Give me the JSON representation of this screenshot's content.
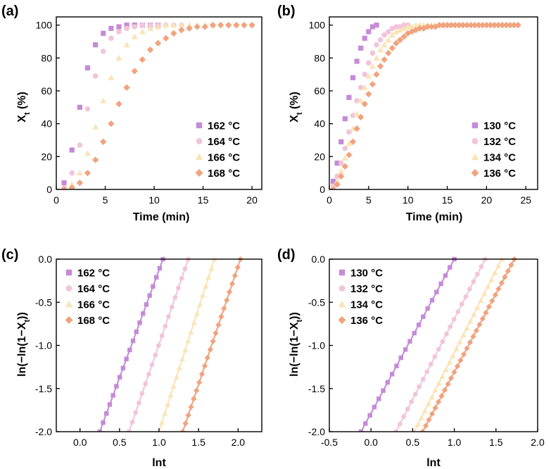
{
  "figure": {
    "colors": {
      "s1": "#c58ad8",
      "s2": "#f2c4d9",
      "s3": "#fbe3b5",
      "s4": "#f0a37e"
    }
  },
  "chart_data": [
    {
      "type": "scatter",
      "panel_label": "(a)",
      "xlabel": "Time (min)",
      "ylabel": "X_t (%)",
      "xlim": [
        0,
        21
      ],
      "ylim": [
        0,
        105
      ],
      "xticks": [
        0,
        5,
        10,
        15,
        20
      ],
      "yticks": [
        0,
        20,
        40,
        60,
        80,
        100
      ],
      "grid": false,
      "legend_position": "bottom-right",
      "series": [
        {
          "name": "162 °C",
          "marker": "square",
          "color": "#c58ad8",
          "x": [
            0.8,
            1.6,
            2.4,
            3.2,
            4.0,
            4.8,
            5.6,
            6.4,
            7.2,
            8.0,
            8.8,
            9.6,
            10.4
          ],
          "y": [
            4,
            24,
            50,
            74,
            88,
            95,
            98,
            99,
            100,
            100,
            100,
            100,
            100
          ]
        },
        {
          "name": "164 °C",
          "marker": "circle",
          "color": "#f2c4d9",
          "x": [
            0.8,
            1.6,
            2.4,
            3.2,
            4.0,
            4.8,
            5.6,
            6.4,
            7.2,
            8.0,
            8.8,
            9.6,
            10.4,
            11.2,
            12.0,
            12.8
          ],
          "y": [
            1,
            10,
            27,
            49,
            69,
            84,
            92,
            96,
            98,
            99,
            100,
            100,
            100,
            100,
            100,
            100
          ]
        },
        {
          "name": "166 °C",
          "marker": "triangle",
          "color": "#fbe3b5",
          "x": [
            0.8,
            1.6,
            2.4,
            3.2,
            4.0,
            4.8,
            5.6,
            6.4,
            7.2,
            8.0,
            8.8,
            9.6,
            10.4,
            11.2,
            12.0,
            12.8,
            13.6,
            14.4,
            15.2,
            16.0
          ],
          "y": [
            0,
            3,
            10,
            22,
            38,
            54,
            68,
            80,
            88,
            93,
            96,
            98,
            99,
            100,
            100,
            100,
            100,
            100,
            100,
            100
          ]
        },
        {
          "name": "168 °C",
          "marker": "diamond",
          "color": "#f0a37e",
          "x": [
            0.8,
            1.6,
            2.4,
            3.2,
            4.0,
            4.8,
            5.6,
            6.4,
            7.2,
            8.0,
            8.8,
            9.6,
            10.4,
            11.2,
            12.0,
            12.8,
            13.6,
            14.4,
            15.2,
            16.0,
            16.8,
            17.6,
            18.4,
            19.2,
            20.0
          ],
          "y": [
            0,
            1,
            4,
            10,
            18,
            29,
            40,
            52,
            62,
            72,
            79,
            85,
            89,
            92,
            95,
            97,
            98,
            99,
            99,
            100,
            100,
            100,
            100,
            100,
            100
          ]
        }
      ]
    },
    {
      "type": "scatter",
      "panel_label": "(b)",
      "xlabel": "Time (min)",
      "ylabel": "X_t (%)",
      "xlim": [
        0,
        26.5
      ],
      "ylim": [
        0,
        105
      ],
      "xticks": [
        0,
        5,
        10,
        15,
        20,
        25
      ],
      "yticks": [
        0,
        20,
        40,
        60,
        80,
        100
      ],
      "grid": false,
      "legend_position": "bottom-right",
      "series": [
        {
          "name": "130 °C",
          "marker": "square",
          "color": "#c58ad8",
          "x": [
            0.5,
            1.0,
            1.5,
            2.0,
            2.5,
            3.0,
            3.5,
            4.0,
            4.5,
            5.0,
            5.5,
            6.0
          ],
          "y": [
            5,
            16,
            29,
            43,
            56,
            68,
            78,
            86,
            92,
            96,
            99,
            100
          ]
        },
        {
          "name": "132 °C",
          "marker": "circle",
          "color": "#f2c4d9",
          "x": [
            0.5,
            1.0,
            1.5,
            2.0,
            2.5,
            3.0,
            3.5,
            4.0,
            4.5,
            5.0,
            5.5,
            6.0,
            6.5,
            7.0,
            7.5,
            8.0,
            8.5,
            9.0,
            9.5,
            10.0
          ],
          "y": [
            2,
            8,
            16,
            25,
            35,
            45,
            54,
            62,
            70,
            77,
            83,
            88,
            91,
            94,
            96,
            98,
            99,
            99,
            100,
            100
          ]
        },
        {
          "name": "134 °C",
          "marker": "triangle",
          "color": "#fbe3b5",
          "x": [
            0.5,
            1.0,
            1.5,
            2.0,
            2.5,
            3.0,
            3.5,
            4.0,
            4.5,
            5.0,
            5.5,
            6.0,
            6.5,
            7.0,
            7.5,
            8.0,
            8.5,
            9.0,
            9.5,
            10.0,
            10.5,
            11.0,
            11.5,
            12.0,
            12.5,
            13.0,
            13.5,
            14.0,
            14.5,
            15.0
          ],
          "y": [
            1,
            5,
            11,
            19,
            28,
            37,
            46,
            54,
            62,
            69,
            75,
            80,
            85,
            88,
            91,
            94,
            96,
            97,
            98,
            99,
            99,
            100,
            100,
            100,
            100,
            100,
            100,
            100,
            100,
            100
          ]
        },
        {
          "name": "136 °C",
          "marker": "diamond",
          "color": "#f0a37e",
          "x": [
            0.5,
            1.0,
            1.5,
            2.0,
            2.5,
            3.0,
            3.5,
            4.0,
            4.5,
            5.0,
            5.5,
            6.0,
            6.5,
            7.0,
            7.5,
            8.0,
            8.5,
            9.0,
            9.5,
            10.0,
            10.5,
            11.0,
            11.5,
            12.0,
            12.5,
            13.0,
            13.5,
            14.0,
            14.5,
            15.0,
            15.5,
            16.0,
            16.5,
            17.0,
            17.5,
            18.0,
            18.5,
            19.0,
            19.5,
            20.0,
            20.5,
            21.0,
            21.5,
            22.0,
            22.5,
            23.0,
            23.5,
            24.0
          ],
          "y": [
            0,
            3,
            8,
            14,
            21,
            29,
            37,
            44,
            52,
            58,
            64,
            70,
            75,
            79,
            83,
            86,
            89,
            91,
            93,
            95,
            96,
            97,
            98,
            98,
            99,
            99,
            99,
            100,
            100,
            100,
            100,
            100,
            100,
            100,
            100,
            100,
            100,
            100,
            100,
            100,
            100,
            100,
            100,
            100,
            100,
            100,
            100,
            100
          ]
        }
      ]
    },
    {
      "type": "scatter",
      "panel_label": "(c)",
      "xlabel": "lnt",
      "ylabel": "ln(−ln(1−X_t))",
      "xlim": [
        -0.3,
        2.3
      ],
      "ylim": [
        -2.0,
        0.0
      ],
      "xticks": [
        0.0,
        0.5,
        1.0,
        1.5,
        2.0
      ],
      "yticks": [
        0.0,
        -0.5,
        -1.0,
        -1.5,
        -2.0
      ],
      "grid": false,
      "legend_position": "top-left",
      "series": [
        {
          "name": "162 °C",
          "marker": "square",
          "color": "#c58ad8",
          "x_start": 0.25,
          "x_end": 1.05,
          "count": 20
        },
        {
          "name": "164 °C",
          "marker": "circle",
          "color": "#f2c4d9",
          "x_start": 0.62,
          "x_end": 1.37,
          "count": 19
        },
        {
          "name": "166 °C",
          "marker": "triangle",
          "color": "#fbe3b5",
          "x_start": 1.0,
          "x_end": 1.7,
          "count": 20
        },
        {
          "name": "168 °C",
          "marker": "diamond",
          "color": "#f0a37e",
          "x_start": 1.3,
          "x_end": 2.03,
          "count": 22
        }
      ]
    },
    {
      "type": "scatter",
      "panel_label": "(d)",
      "xlabel": "lnt",
      "ylabel": "ln(−ln(1−X_t))",
      "xlim": [
        -0.5,
        2.0
      ],
      "ylim": [
        -2.0,
        0.0
      ],
      "xticks": [
        -0.5,
        0.0,
        0.5,
        1.0,
        1.5,
        2.0
      ],
      "yticks": [
        0.0,
        -0.5,
        -1.0,
        -1.5,
        -2.0
      ],
      "grid": false,
      "legend_position": "top-left",
      "series": [
        {
          "name": "130 °C",
          "marker": "square",
          "color": "#c58ad8",
          "x_start": -0.12,
          "x_end": 1.0,
          "count": 22
        },
        {
          "name": "132 °C",
          "marker": "circle",
          "color": "#f2c4d9",
          "x_start": 0.3,
          "x_end": 1.37,
          "count": 24
        },
        {
          "name": "134 °C",
          "marker": "triangle",
          "color": "#fbe3b5",
          "x_start": 0.52,
          "x_end": 1.57,
          "count": 26
        },
        {
          "name": "136 °C",
          "marker": "diamond",
          "color": "#f0a37e",
          "x_start": 0.62,
          "x_end": 1.72,
          "count": 30
        }
      ]
    }
  ]
}
